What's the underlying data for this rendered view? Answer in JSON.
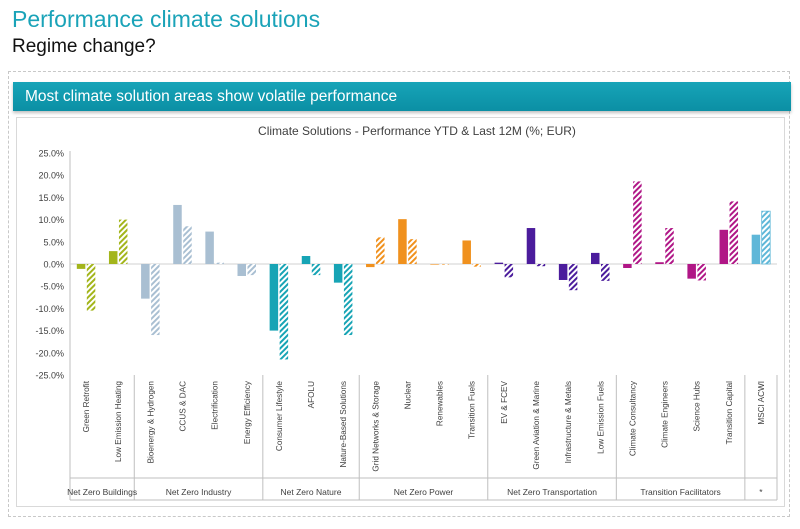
{
  "header": {
    "title": "Performance climate solutions",
    "subtitle": "Regime change?"
  },
  "banner": {
    "text": "Most climate solution areas show volatile performance"
  },
  "colors": {
    "lime": "#a3b51b",
    "steel": "#a9bfd2",
    "teal": "#17a4b5",
    "orange": "#f0911e",
    "purple": "#4b1c9c",
    "magenta": "#b01686",
    "lightblue": "#5fb7d8"
  },
  "chart_data": {
    "type": "bar",
    "title": "Climate Solutions - Performance YTD & Last 12M (%; EUR)",
    "ylim": [
      -25,
      25
    ],
    "yticks": [
      "25.0%",
      "20.0%",
      "15.0%",
      "10.0%",
      "5.0%",
      "0.0%",
      "-5.0%",
      "-10.0%",
      "-15.0%",
      "-20.0%",
      "-25.0%"
    ],
    "series": [
      {
        "name": "YTD",
        "style": "solid"
      },
      {
        "name": "Last 12M",
        "style": "hatched"
      }
    ],
    "groups": [
      {
        "label": "Net Zero Buildings",
        "color": "lime",
        "categories": [
          {
            "label": "Green Retrofit",
            "ytd": -1.1,
            "l12m": -10.5
          },
          {
            "label": "Low Emission Heating",
            "ytd": 2.9,
            "l12m": 10.0
          }
        ]
      },
      {
        "label": "Net Zero Industry",
        "color": "steel",
        "categories": [
          {
            "label": "Bioenergy & Hydrogen",
            "ytd": -7.8,
            "l12m": -16.0
          },
          {
            "label": "CCUS & DAC",
            "ytd": 13.3,
            "l12m": 8.5
          },
          {
            "label": "Electrification",
            "ytd": 7.3,
            "l12m": 0.3
          },
          {
            "label": "Energy Efficiency",
            "ytd": -2.7,
            "l12m": -2.5
          }
        ]
      },
      {
        "label": "Net Zero Nature",
        "color": "teal",
        "categories": [
          {
            "label": "Consumer Lifestyle",
            "ytd": -15.0,
            "l12m": -21.5
          },
          {
            "label": "AFOLU",
            "ytd": 1.8,
            "l12m": -2.5
          },
          {
            "label": "Nature-Based Solutions",
            "ytd": -4.2,
            "l12m": -16.0
          }
        ]
      },
      {
        "label": "Net Zero Power",
        "color": "orange",
        "categories": [
          {
            "label": "Grid Networks & Storage",
            "ytd": -0.7,
            "l12m": 6.0
          },
          {
            "label": "Nuclear",
            "ytd": 10.1,
            "l12m": 5.6
          },
          {
            "label": "Renewables",
            "ytd": 0.0,
            "l12m": 0.0
          },
          {
            "label": "Transition Fuels",
            "ytd": 5.3,
            "l12m": -0.6
          }
        ]
      },
      {
        "label": "Net Zero Transportation",
        "color": "purple",
        "categories": [
          {
            "label": "EV & FCEV",
            "ytd": 0.3,
            "l12m": -3.0
          },
          {
            "label": "Green Aviation & Marine",
            "ytd": 8.1,
            "l12m": -0.5
          },
          {
            "label": "Infrastructure & Metals",
            "ytd": -3.6,
            "l12m": -5.9
          },
          {
            "label": "Low Emission Fuels",
            "ytd": 2.5,
            "l12m": -3.8
          }
        ]
      },
      {
        "label": "Transition Facilitators",
        "color": "magenta",
        "categories": [
          {
            "label": "Climate Consultancy",
            "ytd": -0.9,
            "l12m": 18.6
          },
          {
            "label": "Climate Engineers",
            "ytd": 0.4,
            "l12m": 8.1
          },
          {
            "label": "Science Hubs",
            "ytd": -3.3,
            "l12m": -3.7
          },
          {
            "label": "Transition Capital",
            "ytd": 7.7,
            "l12m": 14.1
          }
        ]
      },
      {
        "label": "*",
        "color": "lightblue",
        "categories": [
          {
            "label": "MSCI ACWI",
            "ytd": 6.6,
            "l12m": 11.9
          }
        ]
      }
    ]
  }
}
